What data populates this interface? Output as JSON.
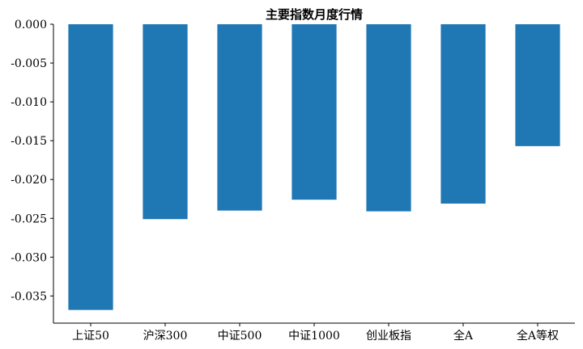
{
  "chart_data": {
    "type": "bar",
    "title": "主要指数月度行情",
    "xlabel": "",
    "ylabel": "",
    "categories": [
      "上证50",
      "沪深300",
      "中证500",
      "中证1000",
      "创业板指",
      "全A",
      "全A等权"
    ],
    "values": [
      -0.0368,
      -0.0251,
      -0.024,
      -0.0226,
      -0.0241,
      -0.0231,
      -0.0157
    ],
    "ylim": [
      -0.0385,
      0.0
    ],
    "yticks": [
      "0.000",
      "-0.005",
      "-0.010",
      "-0.015",
      "-0.020",
      "-0.025",
      "-0.030",
      "-0.035"
    ],
    "ytick_values": [
      0.0,
      -0.005,
      -0.01,
      -0.015,
      -0.02,
      -0.025,
      -0.03,
      -0.035
    ],
    "bar_color": "#1f77b4",
    "grid": false,
    "legend": "none"
  }
}
